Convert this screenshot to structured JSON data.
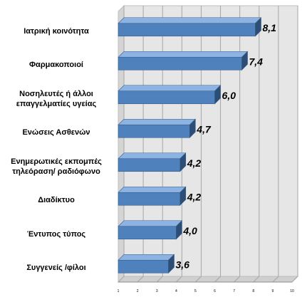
{
  "chart_data": {
    "type": "bar",
    "orientation": "horizontal",
    "style": "3d",
    "categories": [
      "Ιατρική κοινότητα",
      "Φαρμακοποιοί",
      "Νοσηλευτές ή άλλοι\nεπαγγελματίες υγείας",
      "Ενώσεις Ασθενών",
      "Ενημερωτικές εκπομπές\nτηλεόραση/ ραδιόφωνο",
      "Διαδίκτυο",
      "Έντυπος τύπος",
      "Συγγενείς /φίλοι"
    ],
    "values": [
      8.1,
      7.4,
      6.0,
      4.7,
      4.2,
      4.2,
      4.0,
      3.6
    ],
    "data_labels": [
      "8,1",
      "7,4",
      "6,0",
      "4,7",
      "4,2",
      "4,2",
      "4,0",
      "3,6"
    ],
    "xlim": [
      1,
      10
    ],
    "x_ticks": [
      "1",
      "2",
      "3",
      "4",
      "5",
      "6",
      "7",
      "8",
      "9",
      "10"
    ],
    "grid": true,
    "legend": "none",
    "colors": {
      "bar_front": "#4f81bd",
      "bar_top": "#8db3e2",
      "bar_end": "#2c4d75",
      "wall": "#e6e6e6",
      "gridline": "#a6a6a6"
    }
  }
}
